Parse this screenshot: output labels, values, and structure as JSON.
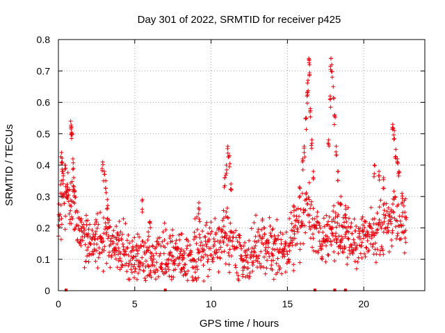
{
  "chart_data": {
    "type": "scatter",
    "title": "Day 301 of 2022, SRMTID for receiver p425",
    "xlabel": "GPS time / hours",
    "ylabel": "SRMTID / TECUs",
    "xlim": [
      0,
      24
    ],
    "ylim": [
      0,
      0.8
    ],
    "x_ticks": [
      0,
      5,
      10,
      15,
      20
    ],
    "y_ticks": [
      0,
      0.1,
      0.2,
      0.3,
      0.4,
      0.5,
      0.6,
      0.7,
      0.8
    ],
    "x_tick_labels": [
      "0",
      "5",
      "10",
      "15",
      "20"
    ],
    "y_tick_labels": [
      "0",
      "0.1",
      "0.2",
      "0.3",
      "0.4",
      "0.5",
      "0.6",
      "0.7",
      "0.8"
    ],
    "grid": true,
    "marker": "plus",
    "color": "#e8000b",
    "series": [
      {
        "name": "SRMTID",
        "baseline": [
          [
            0.0,
            0.22
          ],
          [
            0.3,
            0.28
          ],
          [
            0.6,
            0.3
          ],
          [
            0.9,
            0.27
          ],
          [
            1.2,
            0.22
          ],
          [
            1.6,
            0.18
          ],
          [
            2.2,
            0.16
          ],
          [
            2.8,
            0.16
          ],
          [
            3.2,
            0.17
          ],
          [
            3.8,
            0.14
          ],
          [
            4.5,
            0.12
          ],
          [
            5.0,
            0.11
          ],
          [
            5.5,
            0.1
          ],
          [
            6.0,
            0.09
          ],
          [
            6.5,
            0.1
          ],
          [
            7.0,
            0.11
          ],
          [
            7.5,
            0.11
          ],
          [
            8.0,
            0.1
          ],
          [
            8.5,
            0.1
          ],
          [
            9.0,
            0.12
          ],
          [
            9.5,
            0.14
          ],
          [
            10.0,
            0.14
          ],
          [
            10.5,
            0.16
          ],
          [
            11.0,
            0.18
          ],
          [
            11.5,
            0.12
          ],
          [
            12.0,
            0.1
          ],
          [
            12.5,
            0.11
          ],
          [
            13.0,
            0.12
          ],
          [
            13.5,
            0.14
          ],
          [
            14.0,
            0.14
          ],
          [
            14.5,
            0.13
          ],
          [
            15.0,
            0.12
          ],
          [
            15.5,
            0.18
          ],
          [
            16.0,
            0.22
          ],
          [
            16.3,
            0.3
          ],
          [
            16.6,
            0.2
          ],
          [
            17.0,
            0.17
          ],
          [
            17.5,
            0.18
          ],
          [
            18.0,
            0.2
          ],
          [
            18.5,
            0.18
          ],
          [
            19.0,
            0.17
          ],
          [
            19.5,
            0.16
          ],
          [
            20.0,
            0.17
          ],
          [
            20.5,
            0.18
          ],
          [
            21.0,
            0.2
          ],
          [
            21.5,
            0.22
          ],
          [
            22.0,
            0.25
          ],
          [
            22.5,
            0.22
          ],
          [
            22.8,
            0.22
          ]
        ],
        "spread": 0.055,
        "spikes": [
          [
            0.2,
            0.44
          ],
          [
            0.25,
            0.41
          ],
          [
            0.3,
            0.38
          ],
          [
            0.45,
            0.4
          ],
          [
            0.6,
            0.33
          ],
          [
            0.8,
            0.54
          ],
          [
            0.85,
            0.52
          ],
          [
            0.9,
            0.5
          ],
          [
            0.95,
            0.42
          ],
          [
            1.0,
            0.36
          ],
          [
            1.05,
            0.32
          ],
          [
            2.9,
            0.41
          ],
          [
            3.0,
            0.38
          ],
          [
            3.1,
            0.35
          ],
          [
            3.2,
            0.29
          ],
          [
            5.5,
            0.29
          ],
          [
            6.0,
            0.22
          ],
          [
            9.2,
            0.28
          ],
          [
            10.9,
            0.36
          ],
          [
            11.0,
            0.4
          ],
          [
            11.1,
            0.46
          ],
          [
            11.2,
            0.43
          ],
          [
            11.3,
            0.34
          ],
          [
            15.4,
            0.27
          ],
          [
            15.8,
            0.33
          ],
          [
            16.0,
            0.42
          ],
          [
            16.1,
            0.46
          ],
          [
            16.2,
            0.55
          ],
          [
            16.3,
            0.63
          ],
          [
            16.35,
            0.67
          ],
          [
            16.4,
            0.74
          ],
          [
            16.45,
            0.72
          ],
          [
            16.5,
            0.58
          ],
          [
            16.6,
            0.48
          ],
          [
            16.7,
            0.38
          ],
          [
            17.7,
            0.48
          ],
          [
            17.8,
            0.62
          ],
          [
            17.85,
            0.74
          ],
          [
            17.9,
            0.72
          ],
          [
            18.0,
            0.65
          ],
          [
            18.1,
            0.56
          ],
          [
            18.2,
            0.46
          ],
          [
            18.3,
            0.38
          ],
          [
            18.5,
            0.3
          ],
          [
            18.8,
            0.27
          ],
          [
            20.7,
            0.4
          ],
          [
            21.0,
            0.38
          ],
          [
            21.3,
            0.36
          ],
          [
            21.9,
            0.53
          ],
          [
            22.0,
            0.51
          ],
          [
            22.1,
            0.45
          ],
          [
            22.2,
            0.42
          ],
          [
            22.3,
            0.38
          ],
          [
            22.5,
            0.31
          ]
        ],
        "zero_markers": [
          0.5,
          7.0,
          16.8,
          18.1,
          18.8
        ]
      }
    ]
  }
}
